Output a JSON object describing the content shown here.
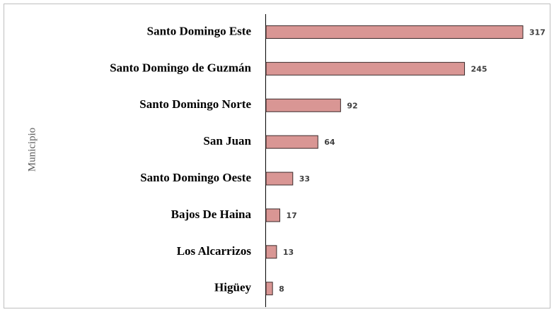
{
  "chart_data": {
    "type": "barh",
    "y_label": "Municipio",
    "categories": [
      "Santo Domingo Este",
      "Santo Domingo de Guzmán",
      "Santo Domingo Norte",
      "San Juan",
      "Santo Domingo Oeste",
      "Bajos De Haina",
      "Los Alcarrizos",
      "Higüey"
    ],
    "values": [
      317,
      245,
      92,
      64,
      33,
      17,
      13,
      8
    ],
    "color": "#d99694"
  }
}
